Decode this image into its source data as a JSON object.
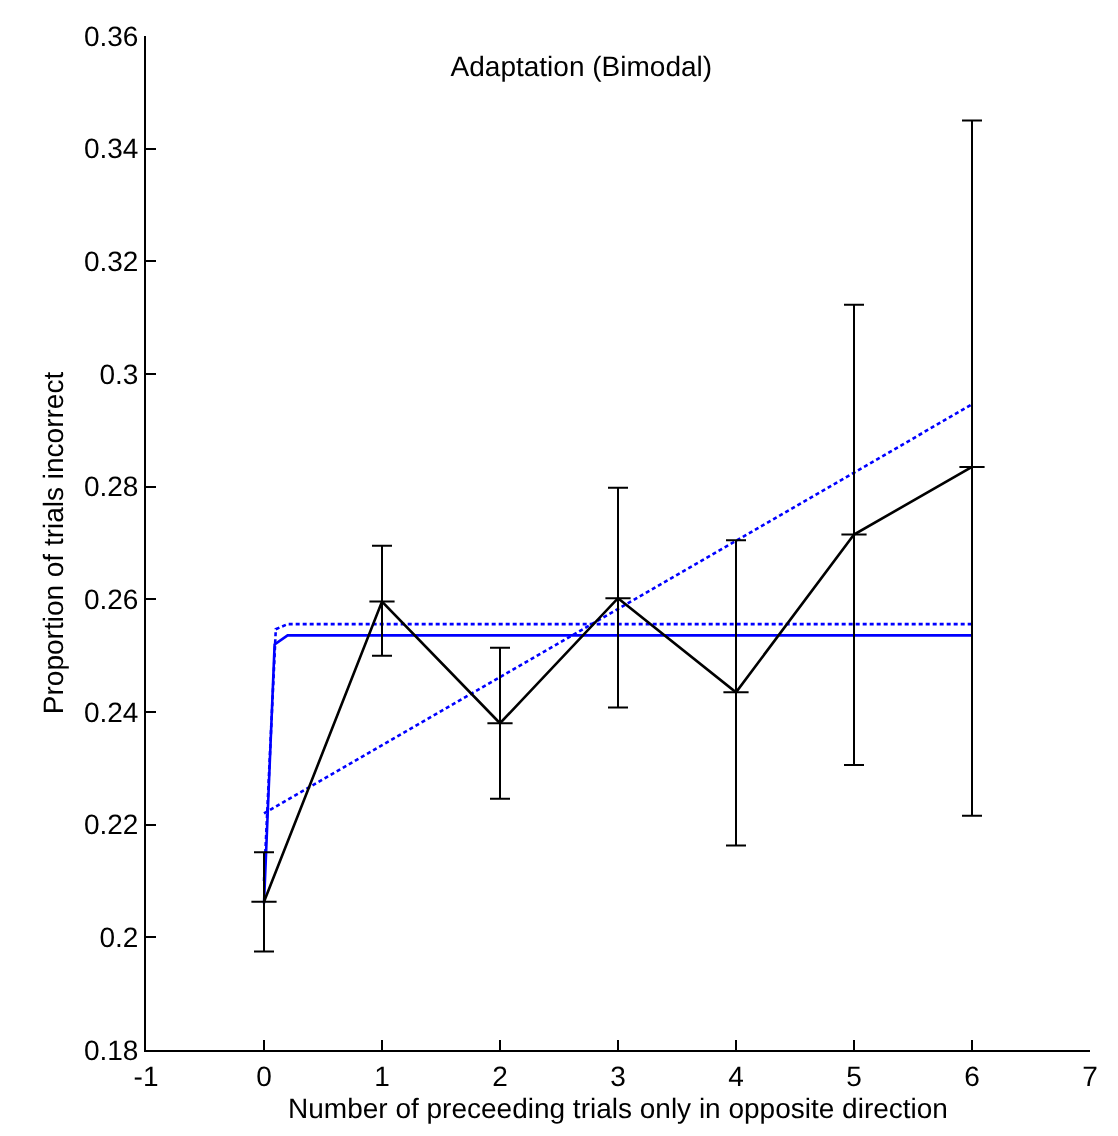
{
  "chart_data": {
    "type": "line",
    "title": "Adaptation (Bimodal)",
    "xlabel": "Number of preceeding trials only in opposite direction",
    "ylabel": "Proportion of trials incorrect",
    "xlim": [
      -1,
      7
    ],
    "xticks": [
      -1,
      0,
      1,
      2,
      3,
      4,
      5,
      6,
      7
    ],
    "ylim": [
      0.18,
      0.36
    ],
    "yticks": [
      0.18,
      0.2,
      0.22,
      0.24,
      0.26,
      0.28,
      0.3,
      0.32,
      0.34,
      0.36
    ],
    "series": [
      {
        "color": "#0000ff",
        "line_style": "solid",
        "marker": "none",
        "x": [
          0,
          0.09,
          0.2,
          6
        ],
        "values": [
          0.206,
          0.252,
          0.2536,
          0.2536
        ]
      },
      {
        "color": "#0000ff",
        "line_style": "dotted",
        "marker": "none",
        "x": [
          0,
          0.1,
          0.2,
          6
        ],
        "values": [
          0.21,
          0.2547,
          0.2556,
          0.2556
        ]
      },
      {
        "color": "#0000ff",
        "line_style": "dotted",
        "marker": "none",
        "x": [
          0,
          6
        ],
        "values": [
          0.222,
          0.2946
        ]
      },
      {
        "color": "#000000",
        "line_style": "solid",
        "marker": "cross",
        "x": [
          0,
          1,
          2,
          3,
          4,
          5,
          6
        ],
        "values": [
          0.2063,
          0.2596,
          0.238,
          0.2602,
          0.2435,
          0.2715,
          0.2835
        ],
        "errors": [
          [
            0.1975,
            0.2151
          ],
          [
            0.25,
            0.2695
          ],
          [
            0.2246,
            0.2514
          ],
          [
            0.2408,
            0.2798
          ],
          [
            0.2163,
            0.2705
          ],
          [
            0.2306,
            0.3123
          ],
          [
            0.2216,
            0.345
          ]
        ]
      }
    ]
  }
}
